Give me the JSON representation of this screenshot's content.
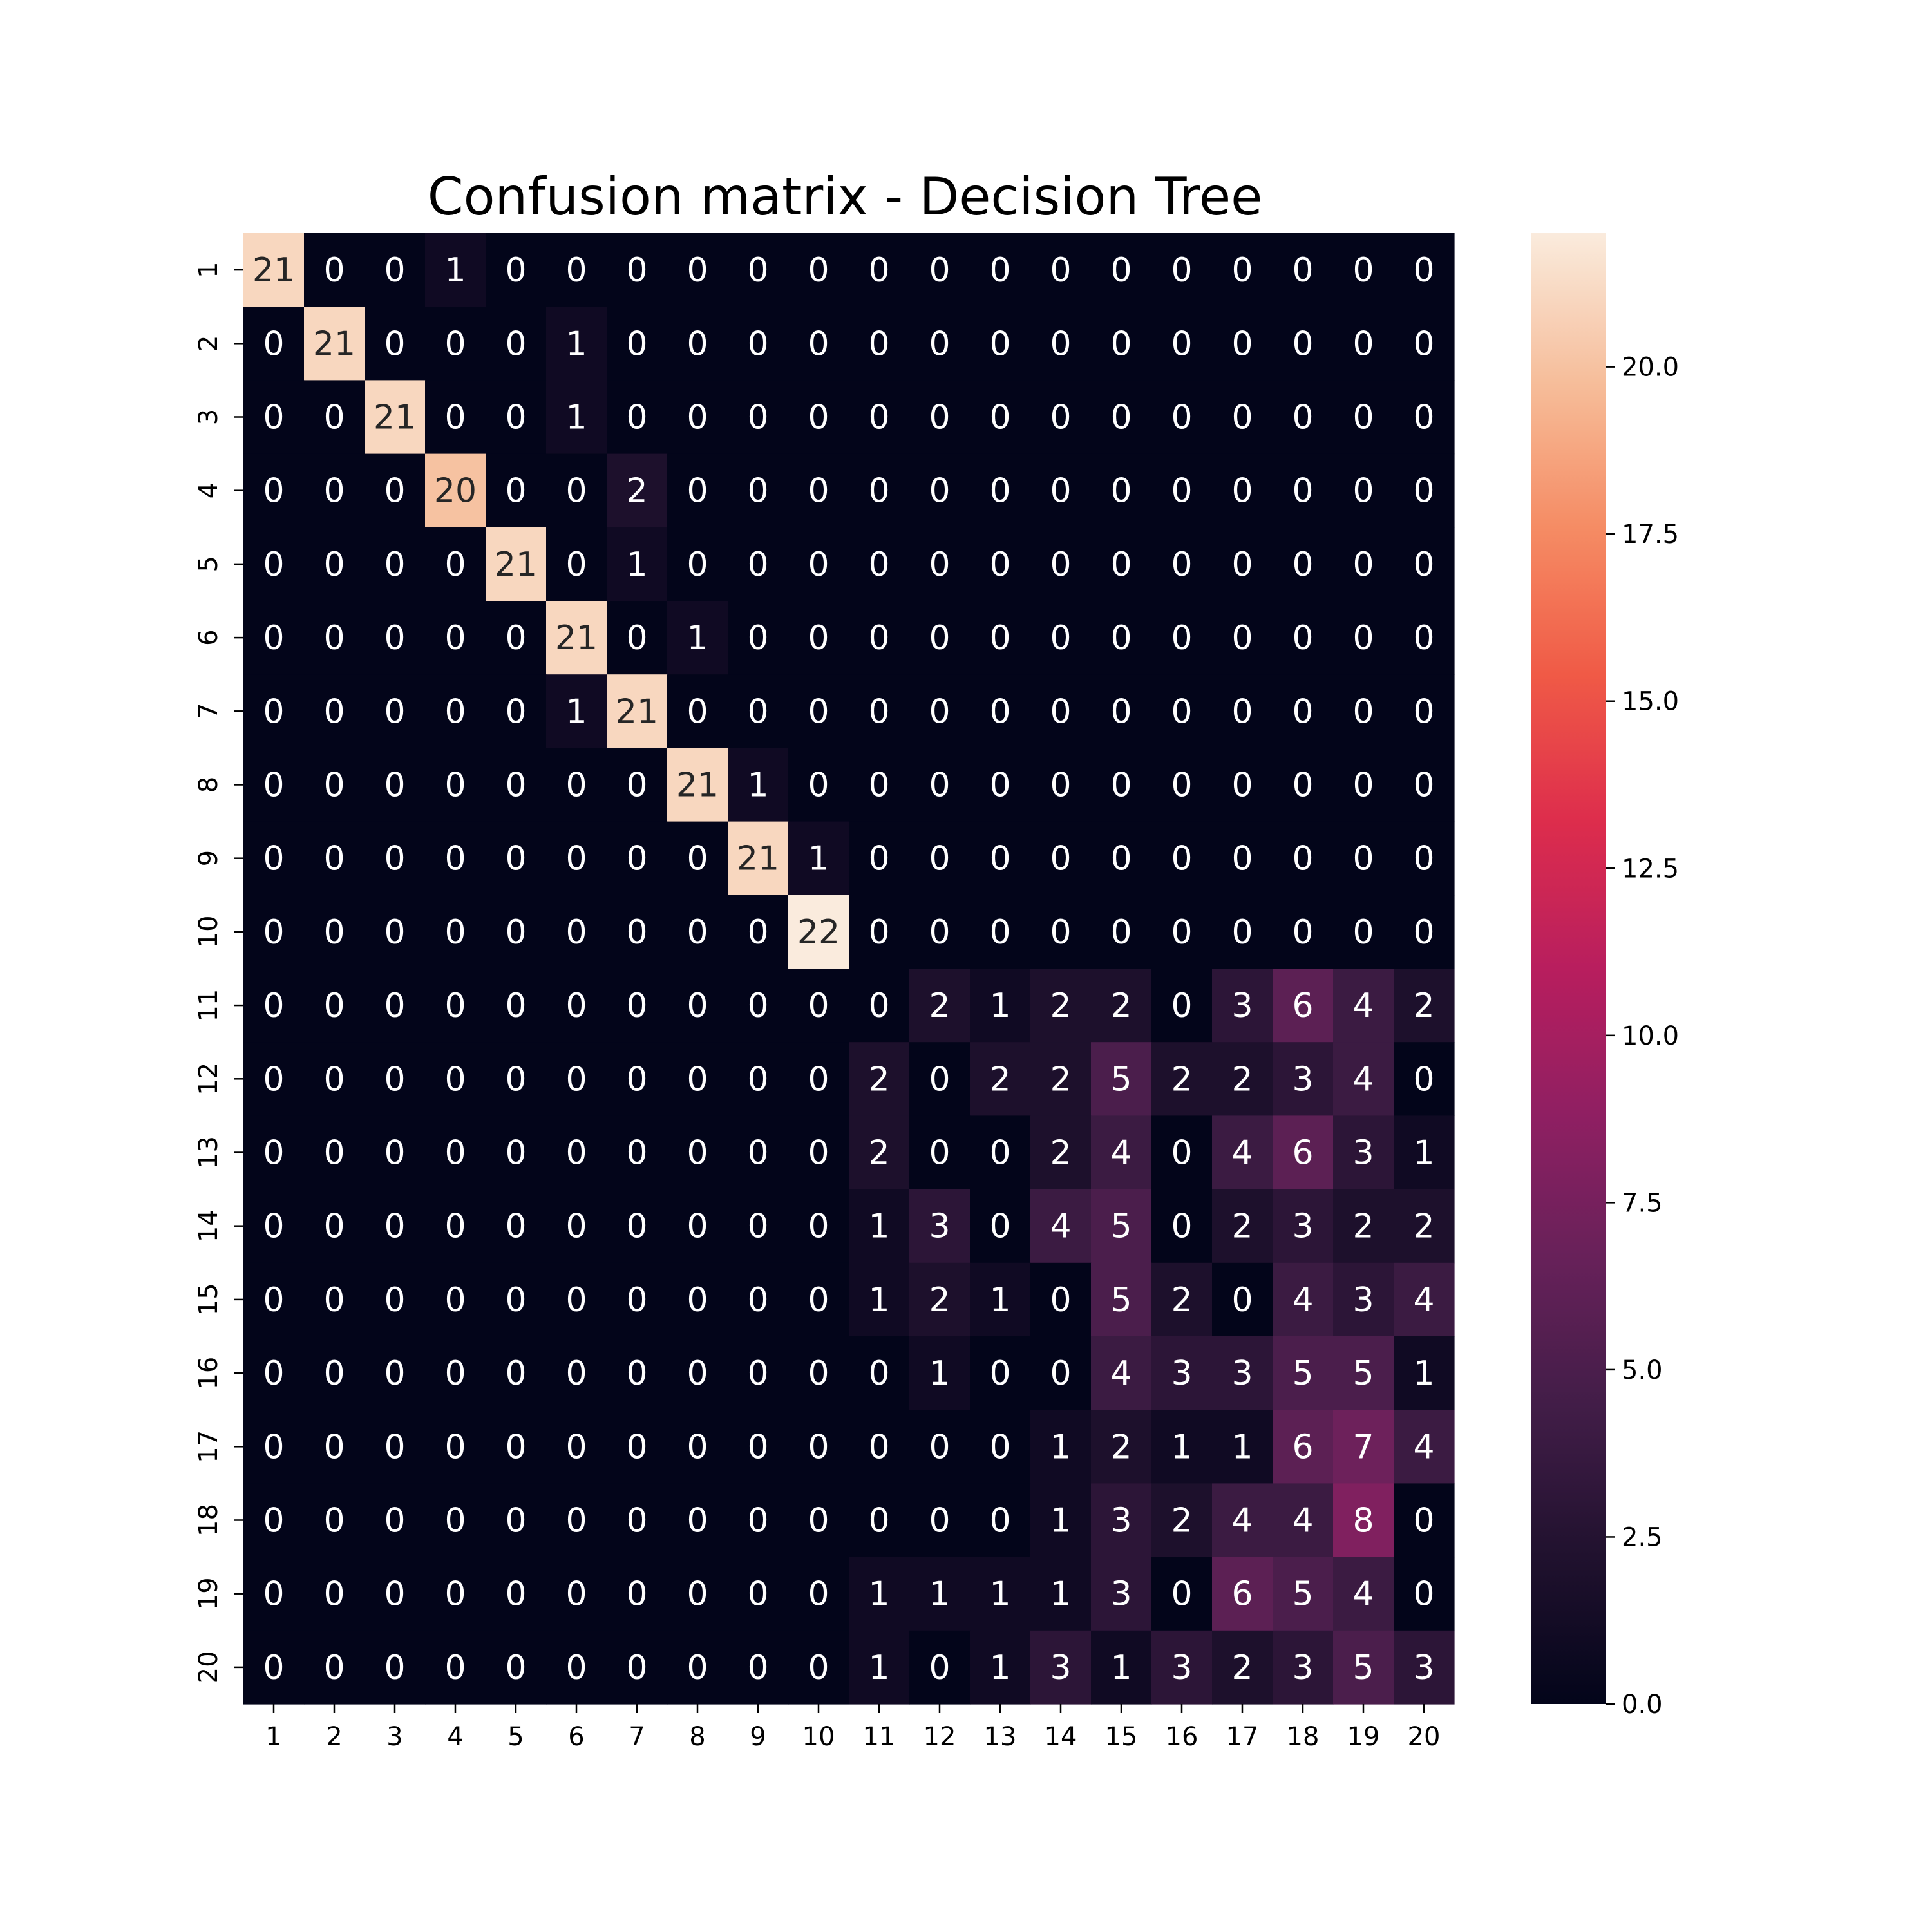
{
  "chart_data": {
    "type": "heatmap",
    "title": "Confusion matrix - Decision Tree",
    "xlabel": "",
    "ylabel": "",
    "x_labels": [
      "1",
      "2",
      "3",
      "4",
      "5",
      "6",
      "7",
      "8",
      "9",
      "10",
      "11",
      "12",
      "13",
      "14",
      "15",
      "16",
      "17",
      "18",
      "19",
      "20"
    ],
    "y_labels": [
      "1",
      "2",
      "3",
      "4",
      "5",
      "6",
      "7",
      "8",
      "9",
      "10",
      "11",
      "12",
      "13",
      "14",
      "15",
      "16",
      "17",
      "18",
      "19",
      "20"
    ],
    "matrix": [
      [
        21,
        0,
        0,
        1,
        0,
        0,
        0,
        0,
        0,
        0,
        0,
        0,
        0,
        0,
        0,
        0,
        0,
        0,
        0,
        0
      ],
      [
        0,
        21,
        0,
        0,
        0,
        1,
        0,
        0,
        0,
        0,
        0,
        0,
        0,
        0,
        0,
        0,
        0,
        0,
        0,
        0
      ],
      [
        0,
        0,
        21,
        0,
        0,
        1,
        0,
        0,
        0,
        0,
        0,
        0,
        0,
        0,
        0,
        0,
        0,
        0,
        0,
        0
      ],
      [
        0,
        0,
        0,
        20,
        0,
        0,
        2,
        0,
        0,
        0,
        0,
        0,
        0,
        0,
        0,
        0,
        0,
        0,
        0,
        0
      ],
      [
        0,
        0,
        0,
        0,
        21,
        0,
        1,
        0,
        0,
        0,
        0,
        0,
        0,
        0,
        0,
        0,
        0,
        0,
        0,
        0
      ],
      [
        0,
        0,
        0,
        0,
        0,
        21,
        0,
        1,
        0,
        0,
        0,
        0,
        0,
        0,
        0,
        0,
        0,
        0,
        0,
        0
      ],
      [
        0,
        0,
        0,
        0,
        0,
        1,
        21,
        0,
        0,
        0,
        0,
        0,
        0,
        0,
        0,
        0,
        0,
        0,
        0,
        0
      ],
      [
        0,
        0,
        0,
        0,
        0,
        0,
        0,
        21,
        1,
        0,
        0,
        0,
        0,
        0,
        0,
        0,
        0,
        0,
        0,
        0
      ],
      [
        0,
        0,
        0,
        0,
        0,
        0,
        0,
        0,
        21,
        1,
        0,
        0,
        0,
        0,
        0,
        0,
        0,
        0,
        0,
        0
      ],
      [
        0,
        0,
        0,
        0,
        0,
        0,
        0,
        0,
        0,
        22,
        0,
        0,
        0,
        0,
        0,
        0,
        0,
        0,
        0,
        0
      ],
      [
        0,
        0,
        0,
        0,
        0,
        0,
        0,
        0,
        0,
        0,
        0,
        2,
        1,
        2,
        2,
        0,
        3,
        6,
        4,
        2
      ],
      [
        0,
        0,
        0,
        0,
        0,
        0,
        0,
        0,
        0,
        0,
        2,
        0,
        2,
        2,
        5,
        2,
        2,
        3,
        4,
        0
      ],
      [
        0,
        0,
        0,
        0,
        0,
        0,
        0,
        0,
        0,
        0,
        2,
        0,
        0,
        2,
        4,
        0,
        4,
        6,
        3,
        1
      ],
      [
        0,
        0,
        0,
        0,
        0,
        0,
        0,
        0,
        0,
        0,
        1,
        3,
        0,
        4,
        5,
        0,
        2,
        3,
        2,
        2
      ],
      [
        0,
        0,
        0,
        0,
        0,
        0,
        0,
        0,
        0,
        0,
        1,
        2,
        1,
        0,
        5,
        2,
        0,
        4,
        3,
        4
      ],
      [
        0,
        0,
        0,
        0,
        0,
        0,
        0,
        0,
        0,
        0,
        0,
        1,
        0,
        0,
        4,
        3,
        3,
        5,
        5,
        1
      ],
      [
        0,
        0,
        0,
        0,
        0,
        0,
        0,
        0,
        0,
        0,
        0,
        0,
        0,
        1,
        2,
        1,
        1,
        6,
        7,
        4
      ],
      [
        0,
        0,
        0,
        0,
        0,
        0,
        0,
        0,
        0,
        0,
        0,
        0,
        0,
        1,
        3,
        2,
        4,
        4,
        8,
        0
      ],
      [
        0,
        0,
        0,
        0,
        0,
        0,
        0,
        0,
        0,
        0,
        1,
        1,
        1,
        1,
        3,
        0,
        6,
        5,
        4,
        0
      ],
      [
        0,
        0,
        0,
        0,
        0,
        0,
        0,
        0,
        0,
        0,
        1,
        0,
        1,
        3,
        1,
        3,
        2,
        3,
        5,
        3
      ]
    ],
    "colorbar": {
      "colormap": "rocket",
      "range": [
        0,
        22
      ],
      "ticks": [
        0.0,
        2.5,
        5.0,
        7.5,
        10.0,
        12.5,
        15.0,
        17.5,
        20.0
      ],
      "tick_labels": [
        "0.0",
        "2.5",
        "5.0",
        "7.5",
        "10.0",
        "12.5",
        "15.0",
        "17.5",
        "20.0"
      ]
    },
    "annotations": true,
    "grid": false,
    "legend": "colorbar at right"
  }
}
